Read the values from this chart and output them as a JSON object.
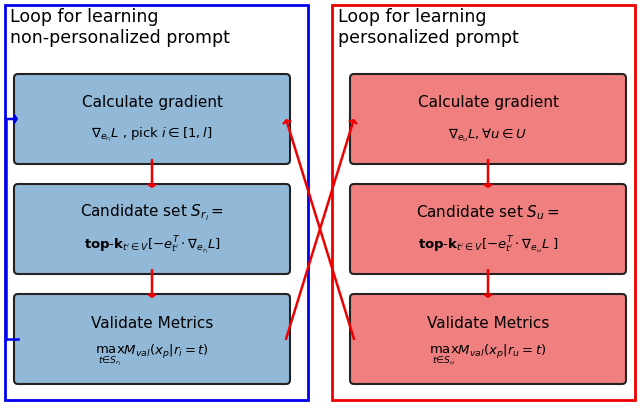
{
  "fig_width": 6.4,
  "fig_height": 4.08,
  "dpi": 100,
  "bg_color": "#ffffff",
  "left_loop_label": "Loop for learning\nnon-personalized prompt",
  "right_loop_label": "Loop for learning\npersonalized prompt",
  "left_box_color": "#92b8d8",
  "right_box_color": "#f08080",
  "left_border_color": "#0000ee",
  "right_border_color": "#ee0000",
  "arrow_color_blue": "#0000ee",
  "arrow_color_red": "#ee0000",
  "left_boxes": [
    {
      "line1": "Calculate gradient",
      "line2": "$\\nabla_{e_{r_i}} L$ , pick $i \\in [1, l]$"
    },
    {
      "line1": "Candidate set $S_{r_i} =$",
      "line2": "$\\mathbf{top}\\text{-}\\mathbf{k}_{t'\\in V}[-e_{t'}^T \\cdot \\nabla_{e_{r_i}} L]$"
    },
    {
      "line1": "Validate Metrics",
      "line2": "$\\max_{t\\in S_{r_i}} M_{val}(x_p|r_i=t)$"
    }
  ],
  "right_boxes": [
    {
      "line1": "Calculate gradient",
      "line2": "$\\nabla_{e_u} L, \\forall u \\in U$"
    },
    {
      "line1": "Candidate set $S_u =$",
      "line2": "$\\mathbf{top}\\text{-}\\mathbf{k}_{t'\\in V}[-e_{t'}^T \\cdot \\nabla_{e_u} L\\ ]$"
    },
    {
      "line1": "Validate Metrics",
      "line2": "$\\max_{t\\in S_u} M_{val}(x_p|r_u=t)$"
    }
  ]
}
